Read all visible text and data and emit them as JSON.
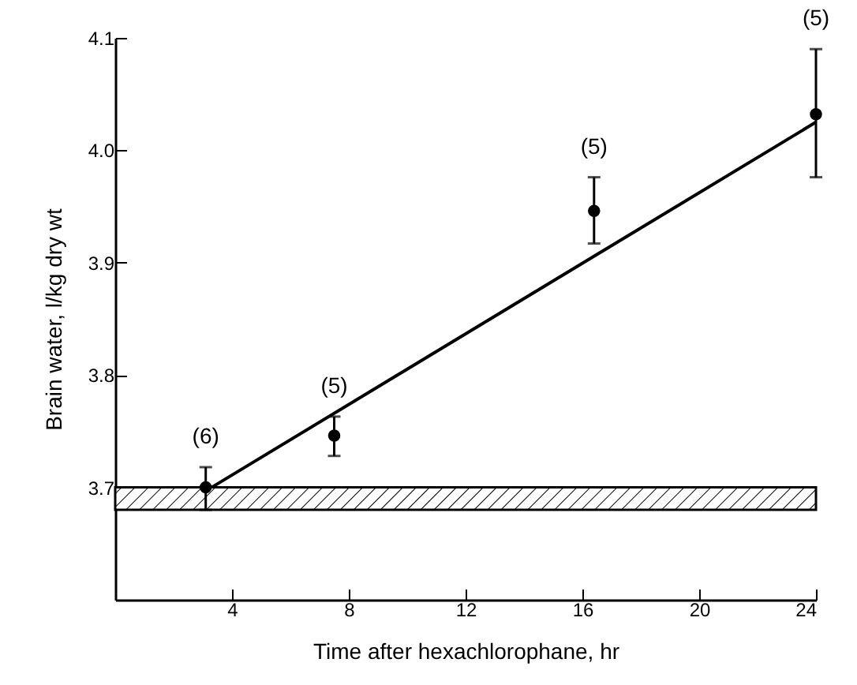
{
  "chart_data": {
    "type": "scatter",
    "xlabel": "Time after hexachlorophane,     hr",
    "ylabel": "Brain water,     l/kg dry wt",
    "xlim": [
      0,
      24
    ],
    "xticks": [
      4,
      8,
      12,
      16,
      20,
      24
    ],
    "ylim": [
      3.6,
      4.1
    ],
    "yticks": [
      3.7,
      3.8,
      {
        "value": 3.9,
        "label": "3.9"
      },
      {
        "value": 4.0,
        "label": "4.0"
      },
      {
        "value": 4.1,
        "label": "4.1"
      }
    ],
    "grid": false,
    "marker": "circle",
    "series": [
      {
        "color": "#000000",
        "x": [
          3.1,
          7.5,
          16.4,
          24
        ],
        "values": [
          3.7,
          3.746,
          3.946,
          4.032
        ],
        "errors": [
          [
            3.68,
            3.718
          ],
          [
            3.728,
            3.763
          ],
          [
            3.917,
            3.976
          ],
          [
            3.976,
            4.09
          ]
        ]
      },
      {
        "type": "line",
        "color": "#000000",
        "x": [
          3.3,
          24
        ],
        "values": [
          3.7,
          4.025
        ],
        "line_style": "solid",
        "marker": "none"
      }
    ],
    "bands": [
      {
        "axis": "y",
        "from": 3.68,
        "to": 3.7,
        "color": "#000000"
      }
    ],
    "annotations": [
      {
        "text": "(6)",
        "x": 3.1,
        "y": 3.718
      },
      {
        "text": "(5)",
        "x": 7.5,
        "y": 3.763
      },
      {
        "text": "(5)",
        "x": 16.4,
        "y": 3.976
      },
      {
        "text": "(5)",
        "x": 24,
        "y": 4.09
      }
    ]
  }
}
